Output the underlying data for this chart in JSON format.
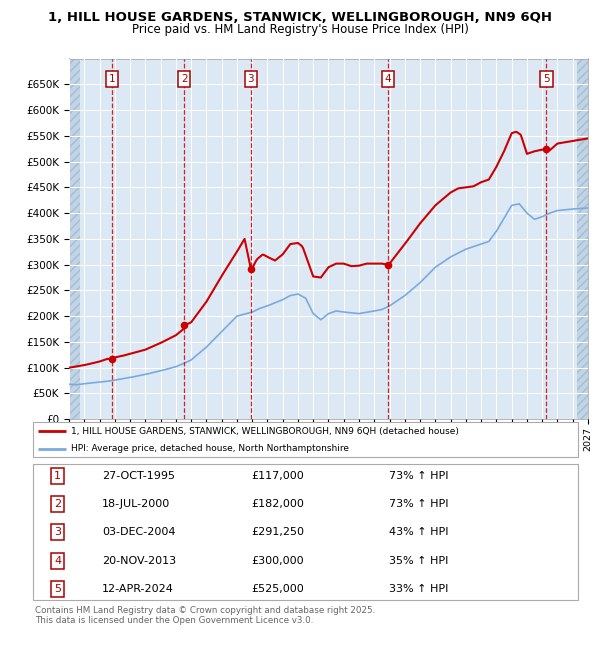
{
  "title_line1": "1, HILL HOUSE GARDENS, STANWICK, WELLINGBOROUGH, NN9 6QH",
  "title_line2": "Price paid vs. HM Land Registry's House Price Index (HPI)",
  "ylim": [
    0,
    700000
  ],
  "yticks": [
    0,
    50000,
    100000,
    150000,
    200000,
    250000,
    300000,
    350000,
    400000,
    450000,
    500000,
    550000,
    600000,
    650000
  ],
  "ytick_labels": [
    "£0",
    "£50K",
    "£100K",
    "£150K",
    "£200K",
    "£250K",
    "£300K",
    "£350K",
    "£400K",
    "£450K",
    "£500K",
    "£550K",
    "£600K",
    "£650K"
  ],
  "hpi_color": "#7aaadd",
  "price_color": "#cc0000",
  "bg_color": "#dce9f5",
  "grid_color": "#ffffff",
  "hatch_color": "#c0d4e8",
  "sale_points": [
    {
      "num": 1,
      "year": 1995.82,
      "price": 117000
    },
    {
      "num": 2,
      "year": 2000.54,
      "price": 182000
    },
    {
      "num": 3,
      "year": 2004.92,
      "price": 291250
    },
    {
      "num": 4,
      "year": 2013.89,
      "price": 300000
    },
    {
      "num": 5,
      "year": 2024.28,
      "price": 525000
    }
  ],
  "xlim_start": 1993.0,
  "xlim_end": 2027.0,
  "legend_line1": "1, HILL HOUSE GARDENS, STANWICK, WELLINGBOROUGH, NN9 6QH (detached house)",
  "legend_line2": "HPI: Average price, detached house, North Northamptonshire",
  "footnote": "Contains HM Land Registry data © Crown copyright and database right 2025.\nThis data is licensed under the Open Government Licence v3.0.",
  "table_rows": [
    [
      "1",
      "27-OCT-1995",
      "£117,000",
      "73% ↑ HPI"
    ],
    [
      "2",
      "18-JUL-2000",
      "£182,000",
      "73% ↑ HPI"
    ],
    [
      "3",
      "03-DEC-2004",
      "£291,250",
      "43% ↑ HPI"
    ],
    [
      "4",
      "20-NOV-2013",
      "£300,000",
      "35% ↑ HPI"
    ],
    [
      "5",
      "12-APR-2024",
      "£525,000",
      "33% ↑ HPI"
    ]
  ]
}
